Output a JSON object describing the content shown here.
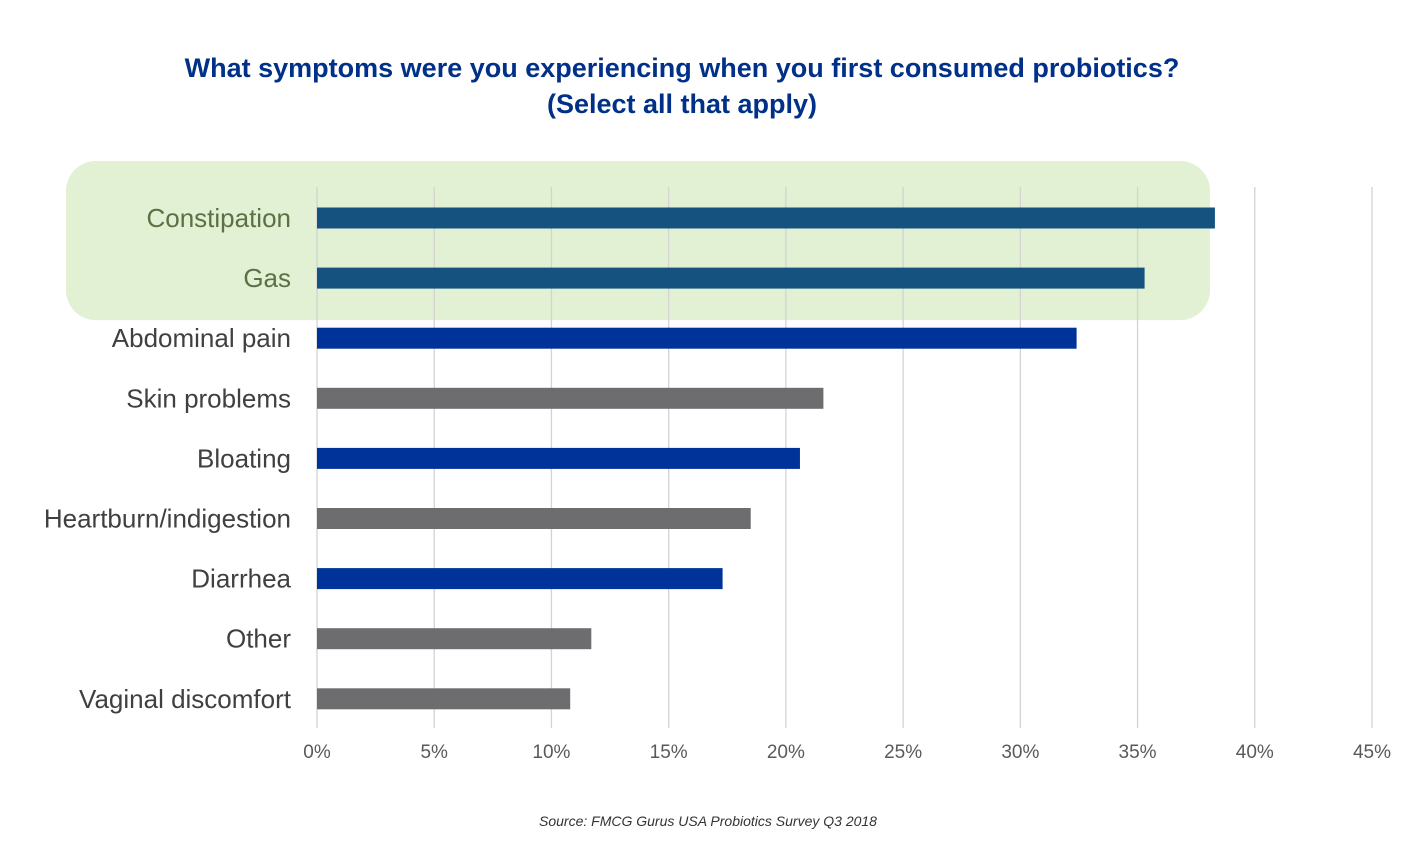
{
  "colors": {
    "title": "#003087",
    "highlight_band": "#e2f0d3",
    "highlight_label": "#5a7145",
    "label": "#404040",
    "tick_label": "#595959",
    "gridline": "#d3d3d3",
    "teal_bar": "#16527f",
    "blue_bar": "#003399",
    "gray_bar": "#6d6d70"
  },
  "chart_data": {
    "type": "bar",
    "orientation": "horizontal",
    "title": "What symptoms were you experiencing when you first consumed probiotics?",
    "subtitle": "(Select all that apply)",
    "categories": [
      "Constipation",
      "Gas",
      "Abdominal pain",
      "Skin problems",
      "Bloating",
      "Heartburn/indigestion",
      "Diarrhea",
      "Other",
      "Vaginal discomfort"
    ],
    "values": [
      38.3,
      35.3,
      32.4,
      21.6,
      20.6,
      18.5,
      17.3,
      11.7,
      10.8
    ],
    "bar_color_keys": [
      "teal_bar",
      "teal_bar",
      "blue_bar",
      "gray_bar",
      "blue_bar",
      "gray_bar",
      "blue_bar",
      "gray_bar",
      "gray_bar"
    ],
    "highlighted_categories": [
      "Constipation",
      "Gas"
    ],
    "xlim": [
      0,
      45
    ],
    "xticks": [
      0,
      5,
      10,
      15,
      20,
      25,
      30,
      35,
      40,
      45
    ],
    "xtick_labels": [
      "0%",
      "5%",
      "10%",
      "15%",
      "20%",
      "25%",
      "30%",
      "35%",
      "40%",
      "45%"
    ],
    "xlabel": "",
    "ylabel": "",
    "grid": true,
    "legend": "none"
  },
  "source": "Source: FMCG Gurus USA Probiotics Survey Q3 2018"
}
